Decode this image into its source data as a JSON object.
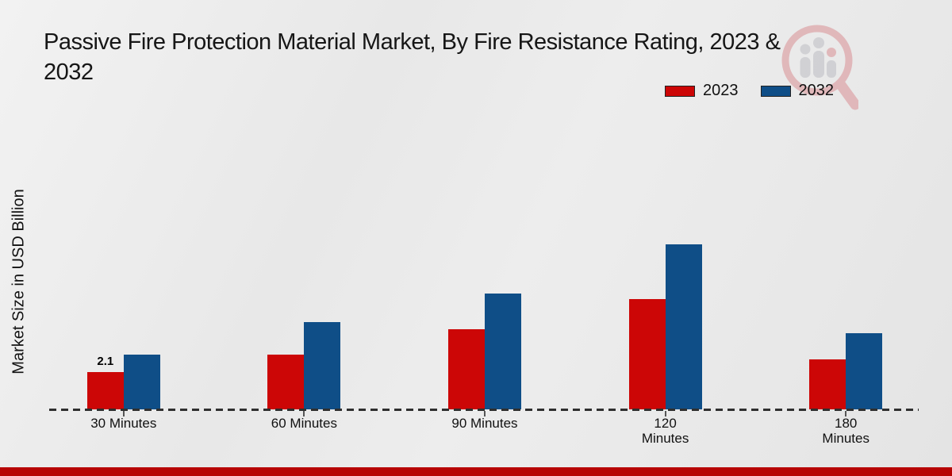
{
  "title": "Passive Fire Protection Material Market, By Fire Resistance Rating, 2023 & 2032",
  "title_lines": {
    "line1": "Passive Fire Protection Material Market, By Fire Resistance Rating, 2023 &",
    "line2": "2032"
  },
  "y_axis_label": "Market Size in USD Billion",
  "legend": {
    "items": [
      {
        "label": "2023",
        "color": "#cc0606"
      },
      {
        "label": "2032",
        "color": "#0f4e87"
      }
    ]
  },
  "colors": {
    "series_2023": "#cc0606",
    "series_2032": "#0f4e87",
    "footer_bar": "#b70404",
    "axis": "#2f2f2f",
    "background": "#eaeaea"
  },
  "watermark": {
    "name": "magnifier-bar-chart-logo"
  },
  "chart_data": {
    "type": "bar",
    "title": "Passive Fire Protection Material Market, By Fire Resistance Rating, 2023 & 2032",
    "xlabel": "",
    "ylabel": "Market Size in USD Billion",
    "categories": [
      "30 Minutes",
      "60 Minutes",
      "90 Minutes",
      "120 Minutes",
      "180 Minutes"
    ],
    "category_display": [
      "30 Minutes",
      "60 Minutes",
      "90 Minutes",
      "120\nMinutes",
      "180\nMinutes"
    ],
    "series": [
      {
        "name": "2023",
        "color": "#cc0606",
        "values": [
          2.1,
          3.1,
          4.5,
          6.2,
          2.8
        ]
      },
      {
        "name": "2032",
        "color": "#0f4e87",
        "values": [
          3.1,
          4.9,
          6.5,
          9.3,
          4.3
        ]
      }
    ],
    "data_labels": [
      {
        "series": "2023",
        "category_index": 0,
        "text": "2.1"
      }
    ],
    "ylim": [
      0,
      10
    ],
    "grid": false,
    "y_axis_ticks_visible": false,
    "baseline_style": "dashed",
    "legend_position": "top-right"
  }
}
